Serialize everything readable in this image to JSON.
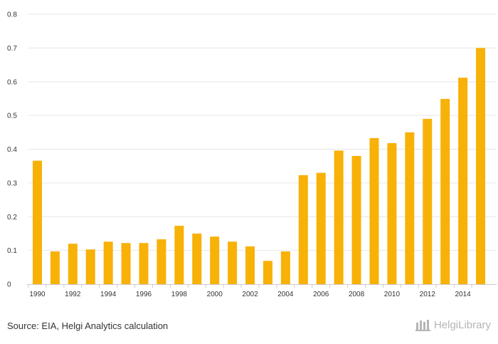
{
  "chart_data": {
    "type": "bar",
    "categories": [
      "1990",
      "1991",
      "1992",
      "1993",
      "1994",
      "1995",
      "1996",
      "1997",
      "1998",
      "1999",
      "2000",
      "2001",
      "2002",
      "2003",
      "2004",
      "2005",
      "2006",
      "2007",
      "2008",
      "2009",
      "2010",
      "2011",
      "2012",
      "2013",
      "2014",
      "2015"
    ],
    "values": [
      0.366,
      0.097,
      0.12,
      0.103,
      0.126,
      0.122,
      0.122,
      0.133,
      0.173,
      0.15,
      0.141,
      0.126,
      0.112,
      0.069,
      0.097,
      0.323,
      0.33,
      0.396,
      0.38,
      0.433,
      0.418,
      0.45,
      0.49,
      0.549,
      0.612,
      0.7
    ],
    "x_tick_labels": [
      "1990",
      "1992",
      "1994",
      "1996",
      "1998",
      "2000",
      "2002",
      "2004",
      "2006",
      "2008",
      "2010",
      "2012",
      "2014"
    ],
    "y_ticks": [
      "0",
      "0.1",
      "0.2",
      "0.3",
      "0.4",
      "0.5",
      "0.6",
      "0.7",
      "0.8"
    ],
    "ylim": [
      0,
      0.8
    ],
    "grid": true,
    "bar_color": "#f8b107",
    "title": "",
    "xlabel": "",
    "ylabel": ""
  },
  "footer": {
    "source": "Source: EIA, Helgi Analytics calculation",
    "brand": "HelgiLibrary"
  },
  "colors": {
    "grid": "#e6e6e6",
    "axis": "#cccccc",
    "text": "#333333",
    "brand": "#b5b5b5"
  }
}
